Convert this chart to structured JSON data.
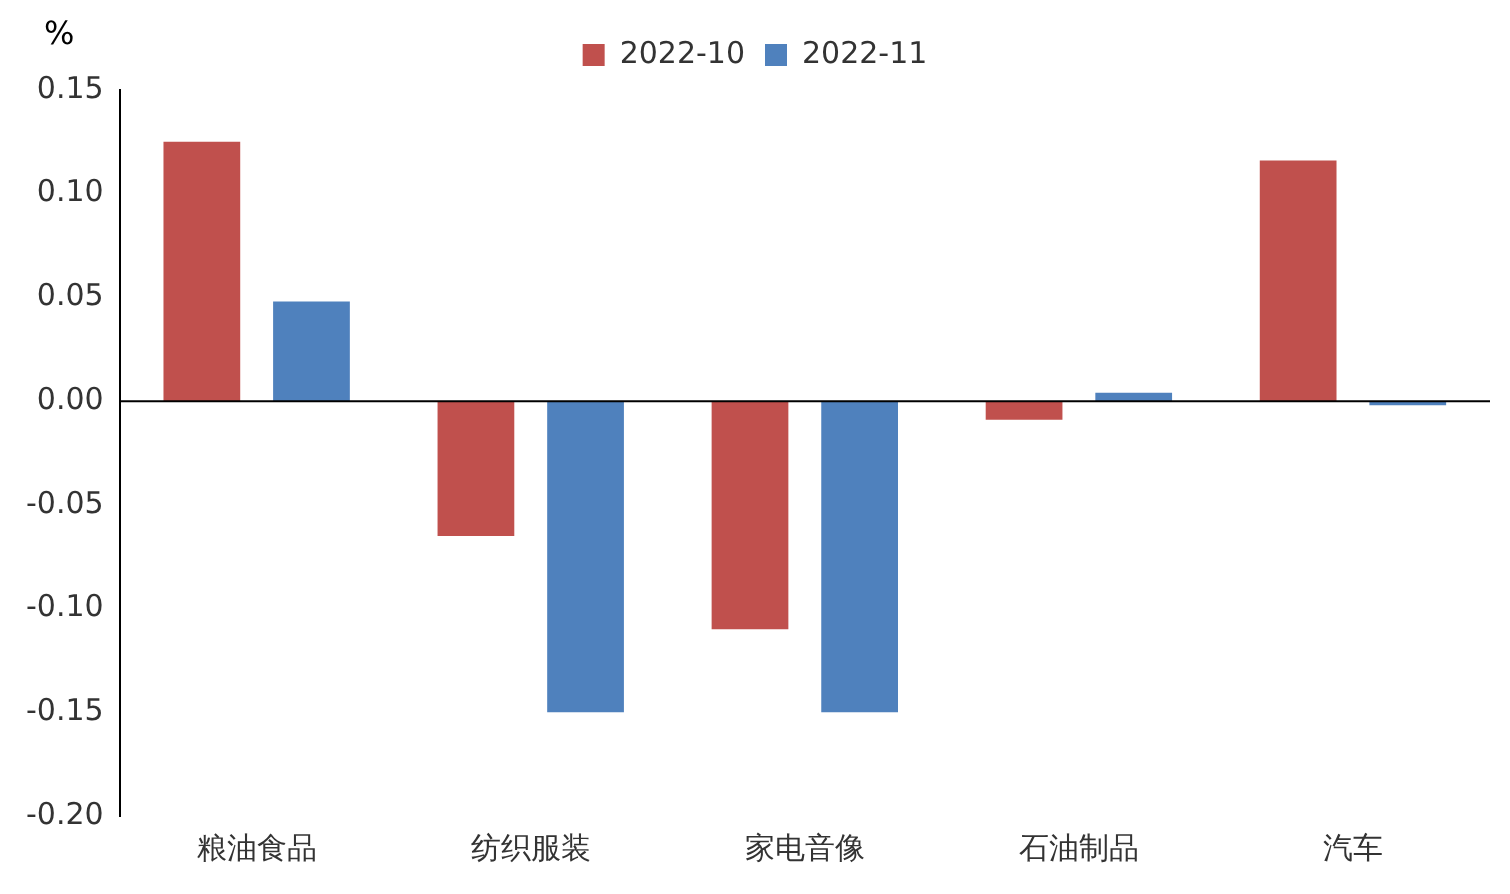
{
  "chart_data": {
    "type": "bar",
    "ylabel": "%",
    "categories": [
      "粮油食品",
      "纺织服装",
      "家电音像",
      "石油制品",
      "汽车"
    ],
    "series": [
      {
        "name": "2022-10",
        "color": "#c0504d",
        "values": [
          0.125,
          -0.065,
          -0.11,
          -0.009,
          0.116
        ]
      },
      {
        "name": "2022-11",
        "color": "#4f81bd",
        "values": [
          0.048,
          -0.15,
          -0.15,
          0.004,
          -0.002
        ]
      }
    ],
    "ylim": [
      -0.2,
      0.15
    ],
    "yticks": [
      {
        "value": -0.2,
        "label": "-0.20"
      },
      {
        "value": -0.15,
        "label": "-0.15"
      },
      {
        "value": -0.1,
        "label": "-0.10"
      },
      {
        "value": -0.05,
        "label": "-0.05"
      },
      {
        "value": 0,
        "label": "0.00"
      },
      {
        "value": 0.05,
        "label": "0.05"
      },
      {
        "value": 0.1,
        "label": "0.10"
      },
      {
        "value": 0.15,
        "label": "0.15"
      }
    ],
    "ref_lines": [
      {
        "axis": "y",
        "value": 0,
        "color": "#000000"
      }
    ],
    "grid": false,
    "legend": "top"
  }
}
